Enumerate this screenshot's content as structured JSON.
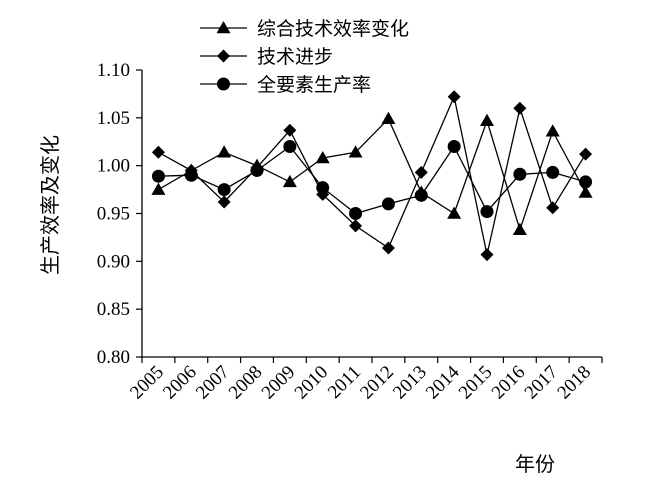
{
  "chart_data": {
    "type": "line",
    "xlabel": "年份",
    "ylabel": "生产效率及变化",
    "ylim": [
      0.8,
      1.1
    ],
    "yticks": [
      "0.80",
      "0.85",
      "0.90",
      "0.95",
      "1.00",
      "1.05",
      "1.10"
    ],
    "x": [
      "2005",
      "2006",
      "2007",
      "2008",
      "2009",
      "2010",
      "2011",
      "2012",
      "2013",
      "2014",
      "2015",
      "2016",
      "2017",
      "2018"
    ],
    "legend_placement": "top-center",
    "grid": false,
    "series": [
      {
        "name": "综合技术效率变化",
        "marker": "triangle",
        "values": [
          0.975,
          0.995,
          1.014,
          1.0,
          0.983,
          1.008,
          1.014,
          1.049,
          0.972,
          0.95,
          1.047,
          0.933,
          1.036,
          0.972
        ]
      },
      {
        "name": "技术进步",
        "marker": "diamond",
        "values": [
          1.014,
          0.995,
          0.962,
          0.998,
          1.037,
          0.97,
          0.937,
          0.914,
          0.993,
          1.072,
          0.907,
          1.06,
          0.956,
          1.012
        ]
      },
      {
        "name": "全要素生产率",
        "marker": "circle",
        "values": [
          0.989,
          0.99,
          0.975,
          0.995,
          1.02,
          0.977,
          0.95,
          0.96,
          0.969,
          1.02,
          0.952,
          0.991,
          0.993,
          0.983
        ]
      }
    ]
  }
}
